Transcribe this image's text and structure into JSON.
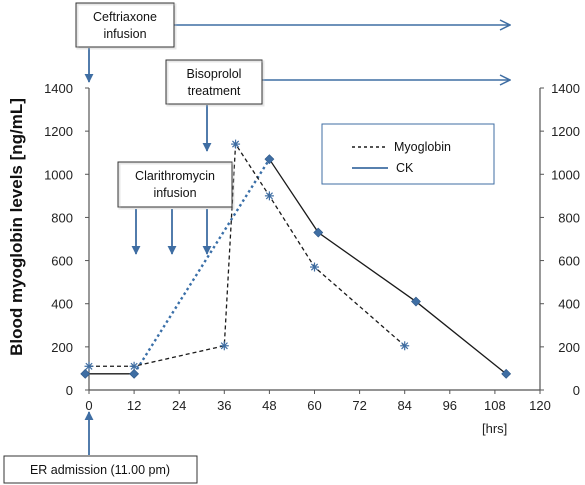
{
  "chart_data": {
    "type": "line",
    "title": "",
    "ylabel": "Blood myoglobin levels [ng/mL]",
    "xlabel": "[hrs]",
    "xlim": [
      0,
      120
    ],
    "ylim": [
      0,
      1400
    ],
    "x_ticks": [
      "0",
      "12",
      "24",
      "36",
      "48",
      "60",
      "72",
      "84",
      "96",
      "108",
      "120"
    ],
    "y_ticks": [
      "0",
      "200",
      "400",
      "600",
      "800",
      "1000",
      "1200",
      "1400"
    ],
    "y_ticks_right": [
      "0",
      "200",
      "400",
      "600",
      "800",
      "1000",
      "1200",
      "1400"
    ],
    "grid": false,
    "legend": "top-right",
    "series": [
      {
        "name": "Myoglobin",
        "style": "dashed",
        "marker": "asterisk",
        "color": "#1a1a1a",
        "x": [
          0,
          12,
          36,
          39,
          48,
          60,
          84
        ],
        "y": [
          110,
          110,
          205,
          1140,
          900,
          570,
          205
        ]
      },
      {
        "name": "CK",
        "style": "solid",
        "marker": "diamond",
        "color": "#1a1a1a",
        "x": [
          -1,
          12,
          48,
          61,
          87,
          111
        ],
        "y": [
          75,
          75,
          1070,
          730,
          410,
          75
        ]
      }
    ],
    "ck_rise_segment": {
      "style": "dotted",
      "color": "#3a6fa8",
      "x": [
        12,
        48
      ],
      "y": [
        75,
        1070
      ]
    },
    "annotations": [
      {
        "label": "Ceftriaxone infusion",
        "lines": [
          "Ceftriaxone",
          "infusion"
        ],
        "start_x": 0,
        "arrow_to_right": true
      },
      {
        "label": "Bisoprolol treatment",
        "lines": [
          "Bisoprolol",
          "treatment"
        ],
        "start_x": 31,
        "arrow_to_right": true
      },
      {
        "label": "Clarithromycin infusion",
        "lines": [
          "Clarithromycin",
          "infusion"
        ],
        "dose_times": [
          12,
          22,
          31
        ]
      },
      {
        "label": "ER admission (11.00 pm)",
        "lines": [
          "ER admission (11.00 pm)"
        ],
        "at_x": 0
      }
    ],
    "colors": {
      "arrow": "#3f6ea3",
      "line": "#1a1a1a",
      "marker": "#3f6ea3",
      "axis": "#555555"
    }
  }
}
